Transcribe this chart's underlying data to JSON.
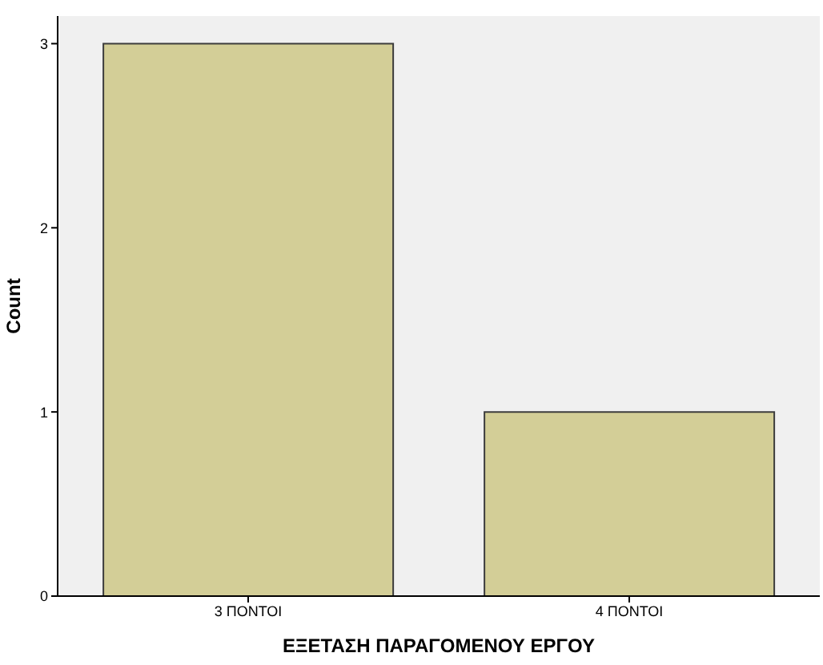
{
  "chart_data": {
    "type": "bar",
    "xlabel": "ΕΞΕΤΑΣΗ ΠΑΡΑΓΟΜΕΝΟΥ ΕΡΓΟΥ",
    "ylabel": "Count",
    "categories": [
      "3 ΠΟΝΤΟΙ",
      "4 ΠΟΝΤΟΙ"
    ],
    "values": [
      3,
      1
    ],
    "color": "#d3ce97",
    "ylim": [
      0,
      3.15
    ],
    "yticks": [
      0,
      1,
      2,
      3
    ],
    "grid": false,
    "legend": false
  }
}
